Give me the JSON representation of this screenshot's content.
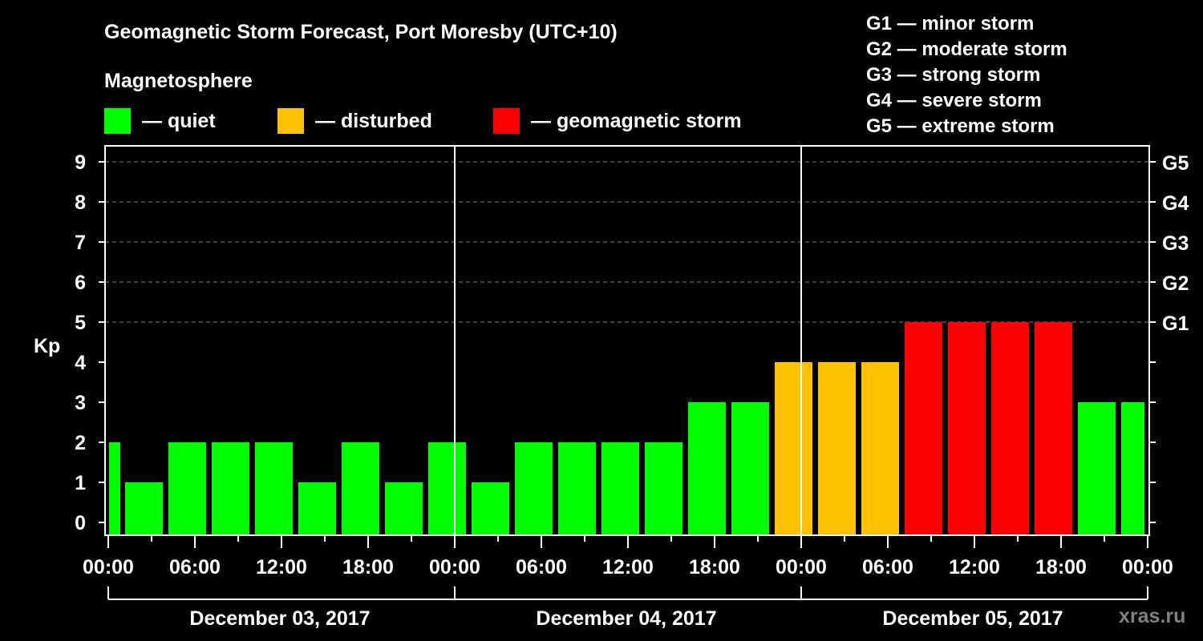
{
  "header": {
    "title": "Geomagnetic Storm Forecast, Port Moresby (UTC+10)",
    "subtitle": "Magnetosphere"
  },
  "legend": [
    {
      "label": "— quiet",
      "color": "#00ff00"
    },
    {
      "label": "— disturbed",
      "color": "#ffc000"
    },
    {
      "label": "— geomagnetic storm",
      "color": "#ff0000"
    }
  ],
  "g_scale": [
    {
      "level": "G1",
      "text": "G1 — minor storm"
    },
    {
      "level": "G2",
      "text": "G2 — moderate storm"
    },
    {
      "level": "G3",
      "text": "G3 — strong storm"
    },
    {
      "level": "G4",
      "text": "G4 — severe storm"
    },
    {
      "level": "G5",
      "text": "G5 — extreme storm"
    }
  ],
  "watermark": "xras.ru",
  "colors": {
    "quiet": "#00ff00",
    "disturbed": "#ffc000",
    "storm": "#ff0000",
    "grid": "#808080",
    "axis": "#ffffff",
    "background": "#000000"
  },
  "chart_data": {
    "type": "bar",
    "title": "Geomagnetic Storm Forecast, Port Moresby (UTC+10)",
    "ylabel": "Kp",
    "xlabel": "",
    "ylim": [
      0,
      9
    ],
    "yticks": [
      0,
      1,
      2,
      3,
      4,
      5,
      6,
      7,
      8,
      9
    ],
    "right_axis_ticks": [
      {
        "kp": 5,
        "label": "G1"
      },
      {
        "kp": 6,
        "label": "G2"
      },
      {
        "kp": 7,
        "label": "G3"
      },
      {
        "kp": 8,
        "label": "G4"
      },
      {
        "kp": 9,
        "label": "G5"
      }
    ],
    "xtick_labels": [
      "00:00",
      "06:00",
      "12:00",
      "18:00",
      "00:00",
      "06:00",
      "12:00",
      "18:00",
      "00:00",
      "06:00",
      "12:00",
      "18:00",
      "00:00"
    ],
    "days": [
      "December 03, 2017",
      "December 04, 2017",
      "December 05, 2017"
    ],
    "grid": "dashed horizontal at Kp 5-9",
    "bar_interval_hours": 3,
    "values": [
      2,
      1,
      2,
      2,
      2,
      1,
      2,
      1,
      2,
      1,
      2,
      2,
      2,
      2,
      3,
      3,
      4,
      4,
      4,
      5,
      5,
      5,
      5,
      3,
      3
    ],
    "status": [
      "quiet",
      "quiet",
      "quiet",
      "quiet",
      "quiet",
      "quiet",
      "quiet",
      "quiet",
      "quiet",
      "quiet",
      "quiet",
      "quiet",
      "quiet",
      "quiet",
      "quiet",
      "quiet",
      "disturbed",
      "disturbed",
      "disturbed",
      "storm",
      "storm",
      "storm",
      "storm",
      "quiet",
      "quiet"
    ]
  }
}
